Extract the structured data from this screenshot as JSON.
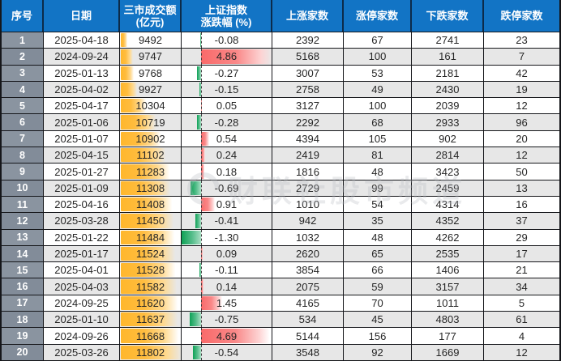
{
  "chart_data": {
    "type": "table",
    "columns": [
      {
        "id": "index",
        "label": "序号"
      },
      {
        "id": "date",
        "label": "日期"
      },
      {
        "id": "turnover",
        "label": "三市成交额",
        "label_line2": "(亿元)"
      },
      {
        "id": "change_pct",
        "label": "上证指数",
        "label_line2": "涨跌幅 (%)"
      },
      {
        "id": "advancers",
        "label": "上涨家数"
      },
      {
        "id": "limit_up",
        "label": "涨停家数"
      },
      {
        "id": "decliners",
        "label": "下跌家数"
      },
      {
        "id": "limit_down",
        "label": "跌停家数"
      }
    ],
    "rows": [
      {
        "index": 1,
        "date": "2025-04-18",
        "turnover": 9492,
        "change_pct": "-0.08",
        "advancers": 2392,
        "limit_up": 67,
        "decliners": 2741,
        "limit_down": 23
      },
      {
        "index": 2,
        "date": "2024-09-24",
        "turnover": 9747,
        "change_pct": "4.86",
        "advancers": 5168,
        "limit_up": 100,
        "decliners": 161,
        "limit_down": 7
      },
      {
        "index": 3,
        "date": "2025-01-13",
        "turnover": 9768,
        "change_pct": "-0.27",
        "advancers": 3007,
        "limit_up": 53,
        "decliners": 2181,
        "limit_down": 42
      },
      {
        "index": 4,
        "date": "2025-04-02",
        "turnover": 9927,
        "change_pct": "-0.15",
        "advancers": 2758,
        "limit_up": 49,
        "decliners": 2430,
        "limit_down": 19
      },
      {
        "index": 5,
        "date": "2025-04-17",
        "turnover": 10304,
        "change_pct": "0.05",
        "advancers": 3127,
        "limit_up": 100,
        "decliners": 2039,
        "limit_down": 12
      },
      {
        "index": 6,
        "date": "2025-01-06",
        "turnover": 10719,
        "change_pct": "-0.28",
        "advancers": 2292,
        "limit_up": 68,
        "decliners": 2933,
        "limit_down": 96
      },
      {
        "index": 7,
        "date": "2025-01-07",
        "turnover": 10902,
        "change_pct": "0.54",
        "advancers": 4394,
        "limit_up": 105,
        "decliners": 902,
        "limit_down": 20
      },
      {
        "index": 8,
        "date": "2025-04-15",
        "turnover": 11102,
        "change_pct": "0.24",
        "advancers": 2419,
        "limit_up": 81,
        "decliners": 2814,
        "limit_down": 12
      },
      {
        "index": 9,
        "date": "2025-01-27",
        "turnover": 11283,
        "change_pct": "0.18",
        "advancers": 1816,
        "limit_up": 48,
        "decliners": 3423,
        "limit_down": 50
      },
      {
        "index": 10,
        "date": "2025-01-09",
        "turnover": 11308,
        "change_pct": "-0.69",
        "advancers": 2729,
        "limit_up": 99,
        "decliners": 2459,
        "limit_down": 13
      },
      {
        "index": 11,
        "date": "2025-04-16",
        "turnover": 11408,
        "change_pct": "0.91",
        "advancers": 1010,
        "limit_up": 54,
        "decliners": 4314,
        "limit_down": 16
      },
      {
        "index": 12,
        "date": "2025-03-28",
        "turnover": 11450,
        "change_pct": "-0.41",
        "advancers": 942,
        "limit_up": 35,
        "decliners": 4352,
        "limit_down": 37
      },
      {
        "index": 13,
        "date": "2025-01-22",
        "turnover": 11484,
        "change_pct": "-1.30",
        "advancers": 1032,
        "limit_up": 48,
        "decliners": 4262,
        "limit_down": 29
      },
      {
        "index": 14,
        "date": "2025-01-17",
        "turnover": 11524,
        "change_pct": "0.09",
        "advancers": 2620,
        "limit_up": 65,
        "decliners": 2535,
        "limit_down": 17
      },
      {
        "index": 15,
        "date": "2025-04-01",
        "turnover": 11528,
        "change_pct": "-0.11",
        "advancers": 3854,
        "limit_up": 66,
        "decliners": 1406,
        "limit_down": 21
      },
      {
        "index": 16,
        "date": "2025-04-03",
        "turnover": 11582,
        "change_pct": "0.14",
        "advancers": 2075,
        "limit_up": 59,
        "decliners": 3157,
        "limit_down": 34
      },
      {
        "index": 17,
        "date": "2024-09-25",
        "turnover": 11620,
        "change_pct": "1.45",
        "advancers": 4165,
        "limit_up": 70,
        "decliners": 1011,
        "limit_down": 5
      },
      {
        "index": 18,
        "date": "2025-01-10",
        "turnover": 11637,
        "change_pct": "-0.75",
        "advancers": 534,
        "limit_up": 45,
        "decliners": 4803,
        "limit_down": 61
      },
      {
        "index": 19,
        "date": "2024-09-26",
        "turnover": 11668,
        "change_pct": "4.69",
        "advancers": 5144,
        "limit_up": 156,
        "decliners": 177,
        "limit_down": 4
      },
      {
        "index": 20,
        "date": "2025-03-26",
        "turnover": 11802,
        "change_pct": "-0.54",
        "advancers": 3548,
        "limit_up": 92,
        "decliners": 1669,
        "limit_down": 12
      }
    ],
    "layout_hints": {
      "turnover_databar": {
        "min": 9492,
        "max": 11802,
        "min_len_pct": 10,
        "color": "#FFB72C"
      },
      "change_databar": {
        "axis_pct": 22,
        "neg_max": 1.3,
        "pos_max": 4.86,
        "neg_color": "#0FA156",
        "pos_color": "#F96A6A"
      },
      "header_bg": "#1274C5",
      "index_col_bg": "#8A94A0",
      "alt_row_bg": "#E7E7E7",
      "grid_color": "#15161A"
    }
  },
  "watermark": {
    "logo": "cailian-press-c-logo",
    "text": "财联社股市频道"
  }
}
